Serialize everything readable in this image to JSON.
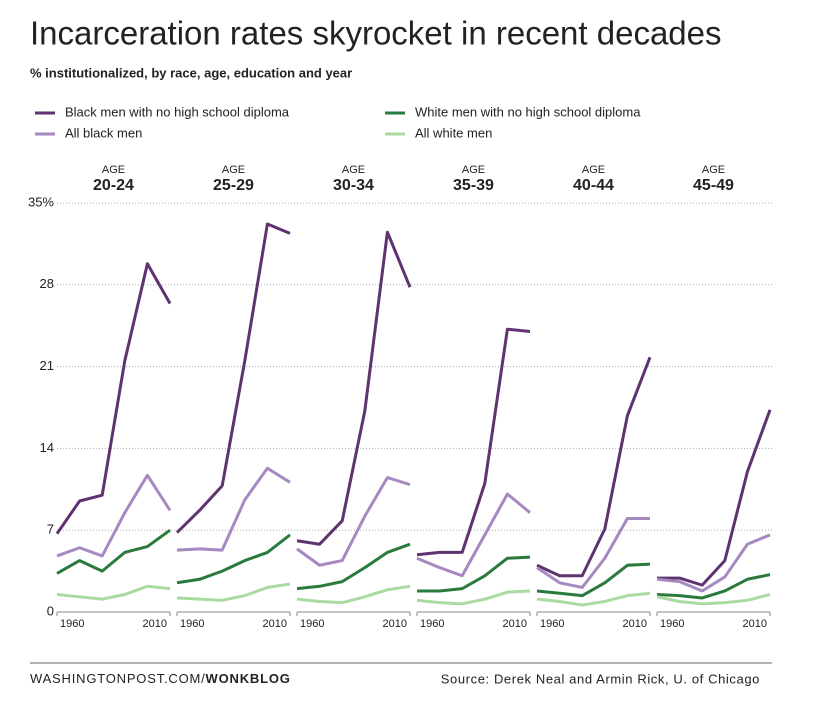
{
  "chart_data": {
    "type": "line",
    "title": "Incarceration rates skyrocket in recent decades",
    "subtitle": "% institutionalized, by race, age, education and year",
    "x": [
      1960,
      1970,
      1980,
      1990,
      2000,
      2010
    ],
    "xlim": [
      1960,
      2010
    ],
    "xticks": [
      1960,
      2010
    ],
    "ylim": [
      0,
      35
    ],
    "yticks": [
      0,
      7,
      14,
      21,
      28,
      {
        "value": 35,
        "label": "35%"
      }
    ],
    "grid": true,
    "series": [
      {
        "name": "Black men with no high school diploma",
        "color": "#5e336f"
      },
      {
        "name": "All black men",
        "color": "#a689c0"
      },
      {
        "name": "White men with no high school diploma",
        "color": "#2b7a3d"
      },
      {
        "name": "All white men",
        "color": "#a9dba0"
      }
    ],
    "panels": [
      {
        "label": "AGE",
        "title": "20-24",
        "series": [
          {
            "values": [
              6.7,
              9.5,
              10.0,
              21.5,
              29.8,
              26.4
            ]
          },
          {
            "values": [
              4.8,
              5.5,
              4.8,
              8.5,
              11.7,
              8.7
            ]
          },
          {
            "values": [
              3.3,
              4.4,
              3.5,
              5.1,
              5.6,
              7.0
            ]
          },
          {
            "values": [
              1.5,
              1.3,
              1.1,
              1.5,
              2.2,
              2.0
            ]
          }
        ]
      },
      {
        "label": "AGE",
        "title": "25-29",
        "series": [
          {
            "values": [
              6.8,
              8.7,
              10.8,
              21.5,
              33.2,
              32.4
            ]
          },
          {
            "values": [
              5.3,
              5.4,
              5.3,
              9.6,
              12.3,
              11.1
            ]
          },
          {
            "values": [
              2.5,
              2.8,
              3.5,
              4.4,
              5.1,
              6.6
            ]
          },
          {
            "values": [
              1.2,
              1.1,
              1.0,
              1.4,
              2.1,
              2.4
            ]
          }
        ]
      },
      {
        "label": "AGE",
        "title": "30-34",
        "series": [
          {
            "values": [
              6.1,
              5.8,
              7.8,
              17.2,
              32.5,
              27.8
            ]
          },
          {
            "values": [
              5.4,
              4.0,
              4.4,
              8.2,
              11.5,
              10.9
            ]
          },
          {
            "values": [
              2.0,
              2.2,
              2.6,
              3.8,
              5.1,
              5.8
            ]
          },
          {
            "values": [
              1.1,
              0.9,
              0.8,
              1.3,
              1.9,
              2.2
            ]
          }
        ]
      },
      {
        "label": "AGE",
        "title": "35-39",
        "series": [
          {
            "values": [
              4.9,
              5.1,
              5.1,
              11.0,
              24.2,
              24.0
            ]
          },
          {
            "values": [
              4.6,
              3.8,
              3.1,
              6.6,
              10.1,
              8.5
            ]
          },
          {
            "values": [
              1.8,
              1.8,
              2.0,
              3.1,
              4.6,
              4.7
            ]
          },
          {
            "values": [
              1.0,
              0.8,
              0.7,
              1.1,
              1.7,
              1.8
            ]
          }
        ]
      },
      {
        "label": "AGE",
        "title": "40-44",
        "series": [
          {
            "values": [
              4.0,
              3.1,
              3.1,
              7.1,
              16.8,
              21.8
            ]
          },
          {
            "values": [
              3.8,
              2.5,
              2.1,
              4.6,
              8.0,
              8.0
            ]
          },
          {
            "values": [
              1.8,
              1.6,
              1.4,
              2.5,
              4.0,
              4.1
            ]
          },
          {
            "values": [
              1.1,
              0.9,
              0.6,
              0.9,
              1.4,
              1.6
            ]
          }
        ]
      },
      {
        "label": "AGE",
        "title": "45-49",
        "series": [
          {
            "values": [
              2.9,
              2.9,
              2.3,
              4.4,
              12.0,
              17.3
            ]
          },
          {
            "values": [
              2.8,
              2.6,
              1.8,
              3.0,
              5.8,
              6.6
            ]
          },
          {
            "values": [
              1.5,
              1.4,
              1.2,
              1.8,
              2.8,
              3.2
            ]
          },
          {
            "values": [
              1.3,
              0.9,
              0.7,
              0.8,
              1.0,
              1.5
            ]
          }
        ]
      }
    ]
  },
  "footer": {
    "site": "WASHINGTONPOST.COM/",
    "blog": "WONKBLOG",
    "source": "Source: Derek Neal and Armin Rick, U. of Chicago"
  }
}
